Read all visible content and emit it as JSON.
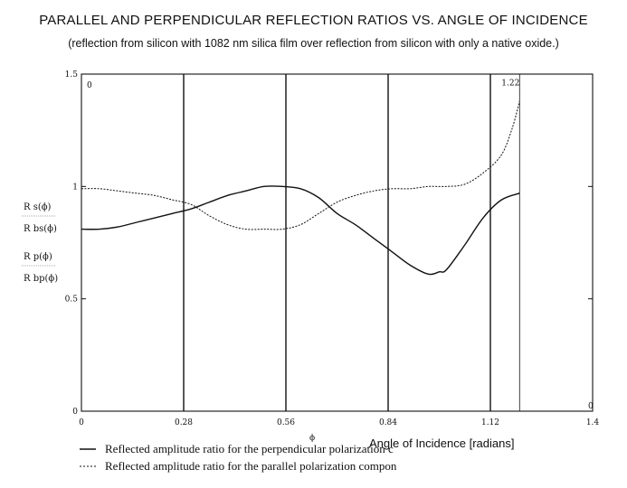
{
  "chart_data": {
    "type": "line",
    "title": "PARALLEL AND PERPENDICULAR REFLECTION RATIOS VS. ANGLE OF INCIDENCE",
    "subtitle": "(reflection from silicon with 1082 nm silica film over reflection from silicon with only a native oxide.)",
    "xlabel": "Angle of Incidence  [radians]",
    "x_var": "ϕ",
    "ylabel": {
      "top": {
        "num": "R s(ϕ)",
        "den": "R bs(ϕ)"
      },
      "bottom": {
        "num": "R p(ϕ)",
        "den": "R bp(ϕ)"
      }
    },
    "xlim": [
      0,
      1.4
    ],
    "ylim": [
      0,
      1.5
    ],
    "x_ticks": [
      "0",
      "0.28",
      "0.56",
      "0.84",
      "1.12",
      "1.4"
    ],
    "y_ticks": [
      "0",
      "0.5",
      "1",
      "1.5"
    ],
    "corner_labels": {
      "top_left": "0",
      "bottom_right": "0"
    },
    "vertical_markers": [
      0.28,
      0.56,
      0.84,
      1.12,
      1.2
    ],
    "annotation": {
      "text": "1.22",
      "x": 1.2,
      "y": 1.45
    },
    "series": [
      {
        "name": "Reflected amplitude ratio for the perpendicular polarization c",
        "style": "solid",
        "x": [
          0,
          0.05,
          0.1,
          0.15,
          0.2,
          0.25,
          0.3,
          0.35,
          0.4,
          0.45,
          0.5,
          0.55,
          0.6,
          0.65,
          0.7,
          0.75,
          0.8,
          0.85,
          0.9,
          0.95,
          0.98,
          1.0,
          1.05,
          1.1,
          1.15,
          1.2
        ],
        "values": [
          0.81,
          0.81,
          0.82,
          0.84,
          0.86,
          0.88,
          0.9,
          0.93,
          0.96,
          0.98,
          1.0,
          1.0,
          0.99,
          0.95,
          0.88,
          0.83,
          0.77,
          0.71,
          0.65,
          0.61,
          0.62,
          0.63,
          0.74,
          0.86,
          0.94,
          0.97
        ]
      },
      {
        "name": "Reflected amplitude ratio for the parallel polarization compon",
        "style": "dashed",
        "x": [
          0,
          0.05,
          0.1,
          0.15,
          0.2,
          0.25,
          0.3,
          0.35,
          0.4,
          0.45,
          0.5,
          0.55,
          0.6,
          0.65,
          0.7,
          0.75,
          0.8,
          0.85,
          0.9,
          0.95,
          1.0,
          1.05,
          1.1,
          1.15,
          1.18,
          1.2
        ],
        "values": [
          0.99,
          0.99,
          0.98,
          0.97,
          0.96,
          0.94,
          0.92,
          0.87,
          0.83,
          0.81,
          0.81,
          0.81,
          0.83,
          0.88,
          0.93,
          0.96,
          0.98,
          0.99,
          0.99,
          1.0,
          1.0,
          1.01,
          1.06,
          1.14,
          1.26,
          1.38
        ]
      }
    ],
    "legend": [
      {
        "label": "Reflected amplitude ratio for the perpendicular polarization c",
        "style": "solid"
      },
      {
        "label": "Reflected amplitude ratio for the parallel polarization compon",
        "style": "dashed"
      }
    ],
    "grid": false
  }
}
